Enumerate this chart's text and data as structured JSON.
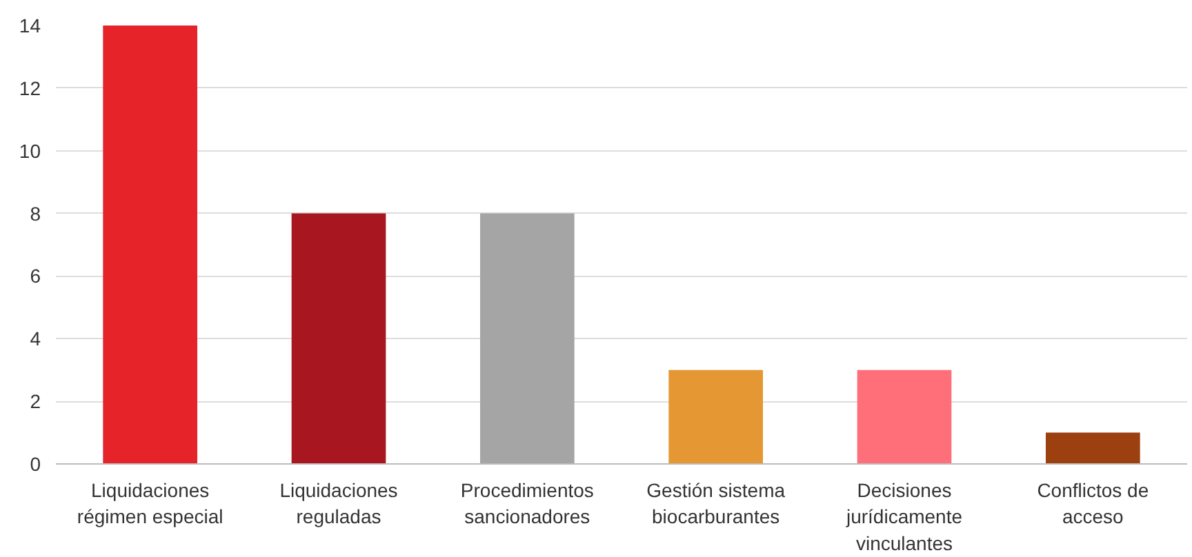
{
  "chart_data": {
    "type": "bar",
    "categories": [
      "Liquidaciones régimen especial",
      "Liquidaciones reguladas",
      "Procedimientos sancionadores",
      "Gestión sistema biocarburantes",
      "Decisiones jurídicamente vinculantes",
      "Conflictos de acceso"
    ],
    "values": [
      14,
      8,
      8,
      3,
      3,
      1
    ],
    "colors": [
      "#e52329",
      "#a8171f",
      "#a5a5a5",
      "#e49732",
      "#ff6f7a",
      "#9c4010"
    ],
    "ylim": [
      0,
      14
    ],
    "yticks": [
      0,
      2,
      4,
      6,
      8,
      10,
      12,
      14
    ],
    "grid": "y"
  }
}
